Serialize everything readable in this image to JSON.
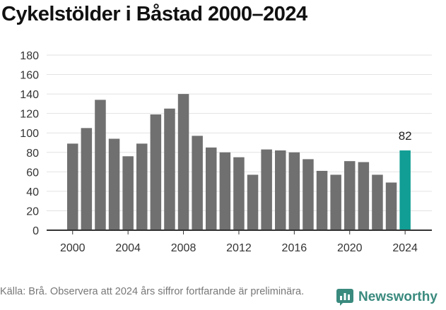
{
  "title": "Cykelstölder i Båstad 2000–2024",
  "source": "Källa: Brå. Observera att 2024 års siffror fortfarande är preliminära.",
  "brand": "Newsworthy",
  "colors": {
    "bar": "#707070",
    "highlight": "#119e95",
    "grid": "#e2e2e2",
    "axis": "#333333",
    "brand": "#3a8a7e"
  },
  "chart_data": {
    "type": "bar",
    "title": "Cykelstölder i Båstad 2000–2024",
    "xlabel": "",
    "ylabel": "",
    "ylim": [
      0,
      180
    ],
    "yticks": [
      0,
      20,
      40,
      60,
      80,
      100,
      120,
      140,
      160,
      180
    ],
    "xtick_labels": [
      "2000",
      "2004",
      "2008",
      "2012",
      "2016",
      "2020",
      "2024"
    ],
    "grid": true,
    "categories": [
      "2000",
      "2001",
      "2002",
      "2003",
      "2004",
      "2005",
      "2006",
      "2007",
      "2008",
      "2009",
      "2010",
      "2011",
      "2012",
      "2013",
      "2014",
      "2015",
      "2016",
      "2017",
      "2018",
      "2019",
      "2020",
      "2021",
      "2022",
      "2023",
      "2024"
    ],
    "values": [
      89,
      105,
      134,
      94,
      76,
      89,
      119,
      125,
      140,
      97,
      85,
      80,
      75,
      57,
      83,
      82,
      80,
      73,
      61,
      57,
      71,
      70,
      57,
      49,
      82
    ],
    "highlight": {
      "category": "2024",
      "label": "82"
    }
  }
}
